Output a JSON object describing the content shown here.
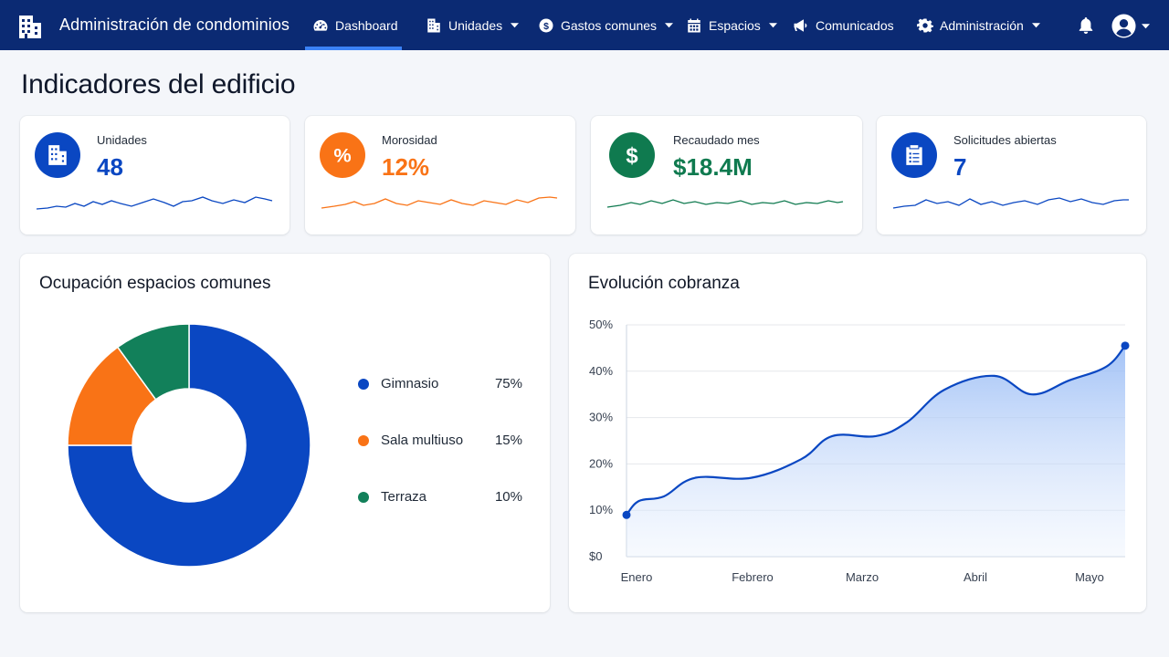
{
  "app": {
    "title": "Administración de condominios"
  },
  "nav": {
    "items": [
      {
        "label": "Dashboard",
        "icon": "gauge-icon",
        "active": true
      },
      {
        "label": "Unidades",
        "icon": "building-icon",
        "dropdown": true
      },
      {
        "label": "Gastos comunes",
        "icon": "dollar-circle-icon",
        "dropdown": true
      },
      {
        "label": "Espacios",
        "icon": "calendar-icon",
        "dropdown": true
      },
      {
        "label": "Comunicados",
        "icon": "megaphone-icon"
      },
      {
        "label": "Administración",
        "icon": "gear-icon",
        "dropdown": true
      }
    ],
    "right_icons": [
      "bell-icon",
      "user-avatar-icon"
    ]
  },
  "page": {
    "title": "Indicadores del edificio"
  },
  "kpis": [
    {
      "label": "Unidades",
      "value": "48",
      "color": "#0a47c2",
      "icon": "building-icon"
    },
    {
      "label": "Morosidad",
      "value": "12%",
      "color": "#f97316",
      "icon": "percent-icon"
    },
    {
      "label": "Recaudado mes",
      "value": "$18.4M",
      "color": "#0f7a4f",
      "icon": "dollar-icon"
    },
    {
      "label": "Solicitudes abiertas",
      "value": "7",
      "color": "#0a47c2",
      "icon": "clipboard-list-icon"
    }
  ],
  "occupancy": {
    "title": "Ocupación espacios comunes",
    "chart_data": {
      "type": "pie",
      "donut": true,
      "categories": [
        "Gimnasio",
        "Sala multiuso",
        "Terraza"
      ],
      "values": [
        75,
        15,
        10
      ],
      "value_labels": [
        "75%",
        "15%",
        "10%"
      ],
      "colors": [
        "#0a47c2",
        "#f97316",
        "#12805a"
      ],
      "legend": "right"
    }
  },
  "collection": {
    "title": "Evolución cobranza",
    "chart_data": {
      "type": "area",
      "categories": [
        "Enero",
        "Febrero",
        "Marzo",
        "Abril",
        "Mayo"
      ],
      "yticks": [
        "$0",
        "10%",
        "20%",
        "30%",
        "40%",
        "50%"
      ],
      "ylim": [
        0,
        50
      ],
      "series": [
        {
          "x": [
            0,
            0.1,
            0.3,
            0.55,
            1,
            1.4,
            1.65,
            2,
            2.25,
            2.55,
            2.95,
            3.25,
            3.55,
            3.85,
            4
          ],
          "values": [
            9,
            12,
            13,
            17,
            17,
            21,
            26,
            26,
            29,
            36,
            39,
            35,
            38,
            41,
            45.5
          ]
        }
      ],
      "color": "#0a47c2",
      "grid": true
    }
  }
}
